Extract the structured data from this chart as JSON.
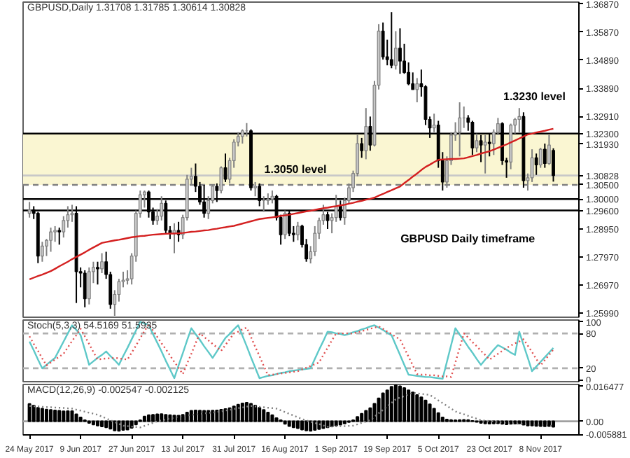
{
  "chart_data": [
    {
      "type": "candlestick",
      "title": "GBPUSD,Daily 1.31708 1.31785 1.30614 1.30828",
      "tick_labels": "y",
      "categories": [
        null,
        null,
        null,
        null,
        null,
        null,
        null,
        null,
        null,
        null,
        null,
        null,
        null,
        null,
        null,
        null,
        null,
        null,
        null,
        null,
        null,
        null,
        null,
        null,
        null,
        null,
        null,
        null,
        null,
        null,
        null,
        null,
        null,
        null,
        null,
        null,
        null,
        null,
        null,
        null,
        null,
        null,
        null,
        null,
        null,
        null,
        null,
        null,
        null,
        null,
        null,
        null,
        null,
        null,
        null,
        null,
        null,
        null,
        null,
        null,
        null,
        null,
        null,
        null,
        null,
        null,
        null,
        null,
        null,
        null,
        null,
        null,
        null,
        null,
        null,
        null,
        null,
        null,
        null,
        null,
        null,
        null,
        null,
        null,
        null,
        null,
        null,
        null,
        null,
        null,
        null,
        null,
        null,
        null,
        null,
        null,
        null,
        null,
        null,
        null,
        null,
        null,
        null,
        null,
        null,
        null,
        null,
        null,
        null,
        null,
        null,
        null,
        null,
        null,
        null,
        null,
        null,
        null,
        null,
        null,
        null,
        null,
        null,
        null
      ],
      "ohlc": [
        [
          1.295,
          1.299,
          1.2935,
          1.2962
        ],
        [
          1.2962,
          1.2975,
          1.293,
          1.295
        ],
        [
          1.295,
          1.2955,
          1.2775,
          1.28
        ],
        [
          1.28,
          1.285,
          1.278,
          1.2835
        ],
        [
          1.2835,
          1.286,
          1.28,
          1.2855
        ],
        [
          1.2855,
          1.29,
          1.2815,
          1.2885
        ],
        [
          1.2885,
          1.2905,
          1.285,
          1.289
        ],
        [
          1.289,
          1.29,
          1.284,
          1.2885
        ],
        [
          1.2885,
          1.294,
          1.2865,
          1.2925
        ],
        [
          1.2925,
          1.2975,
          1.29,
          1.2945
        ],
        [
          1.2945,
          1.298,
          1.292,
          1.295
        ],
        [
          1.295,
          1.2975,
          1.2635,
          1.2745
        ],
        [
          1.2745,
          1.276,
          1.269,
          1.274
        ],
        [
          1.274,
          1.275,
          1.262,
          1.265
        ],
        [
          1.265,
          1.276,
          1.263,
          1.2745
        ],
        [
          1.2745,
          1.278,
          1.2705,
          1.276
        ],
        [
          1.276,
          1.278,
          1.27,
          1.2755
        ],
        [
          1.2755,
          1.281,
          1.274,
          1.278
        ],
        [
          1.278,
          1.2815,
          1.272,
          1.2735
        ],
        [
          1.2735,
          1.2745,
          1.2615,
          1.263
        ],
        [
          1.263,
          1.268,
          1.259,
          1.2665
        ],
        [
          1.2665,
          1.272,
          1.264,
          1.271
        ],
        [
          1.271,
          1.2745,
          1.269,
          1.2715
        ],
        [
          1.2715,
          1.275,
          1.27,
          1.272
        ],
        [
          1.272,
          1.281,
          1.27,
          1.28
        ],
        [
          1.28,
          1.296,
          1.278,
          1.295
        ],
        [
          1.295,
          1.303,
          1.2935,
          1.3015
        ],
        [
          1.3015,
          1.303,
          1.297,
          1.3025
        ],
        [
          1.3025,
          1.303,
          1.2935,
          1.2955
        ],
        [
          1.2955,
          1.297,
          1.291,
          1.2925
        ],
        [
          1.2925,
          1.2965,
          1.291,
          1.294
        ],
        [
          1.294,
          1.301,
          1.2925,
          1.2985
        ],
        [
          1.2985,
          1.2995,
          1.288,
          1.289
        ],
        [
          1.289,
          1.2905,
          1.286,
          1.288
        ],
        [
          1.288,
          1.2915,
          1.281,
          1.289
        ],
        [
          1.289,
          1.292,
          1.285,
          1.2875
        ],
        [
          1.2875,
          1.2945,
          1.286,
          1.2935
        ],
        [
          1.2935,
          1.3085,
          1.2925,
          1.307
        ],
        [
          1.307,
          1.311,
          1.305,
          1.308
        ],
        [
          1.308,
          1.3125,
          1.3025,
          1.3045
        ],
        [
          1.3045,
          1.306,
          1.298,
          1.299
        ],
        [
          1.299,
          1.305,
          1.2935,
          1.295
        ],
        [
          1.295,
          1.301,
          1.293,
          1.2995
        ],
        [
          1.2995,
          1.305,
          1.2985,
          1.3045
        ],
        [
          1.3045,
          1.3055,
          1.299,
          1.303
        ],
        [
          1.303,
          1.3115,
          1.302,
          1.311
        ],
        [
          1.311,
          1.316,
          1.306,
          1.307
        ],
        [
          1.307,
          1.3145,
          1.3055,
          1.3135
        ],
        [
          1.3135,
          1.321,
          1.311,
          1.32
        ],
        [
          1.32,
          1.3235,
          1.3185,
          1.322
        ],
        [
          1.322,
          1.3245,
          1.3195,
          1.324
        ],
        [
          1.324,
          1.3267,
          1.322,
          1.324
        ],
        [
          1.324,
          1.3245,
          1.303,
          1.304
        ],
        [
          1.304,
          1.306,
          1.301,
          1.3045
        ],
        [
          1.3045,
          1.3055,
          1.2975,
          1.2995
        ],
        [
          1.2995,
          1.301,
          1.2955,
          1.2995
        ],
        [
          1.2995,
          1.302,
          1.298,
          1.3
        ],
        [
          1.3,
          1.303,
          1.2985,
          1.301
        ],
        [
          1.301,
          1.3015,
          1.2925,
          1.2935
        ],
        [
          1.2935,
          1.2945,
          1.284,
          1.2875
        ],
        [
          1.2875,
          1.296,
          1.286,
          1.295
        ],
        [
          1.295,
          1.296,
          1.287,
          1.288
        ],
        [
          1.288,
          1.2905,
          1.285,
          1.2875
        ],
        [
          1.2875,
          1.292,
          1.2855,
          1.2905
        ],
        [
          1.2905,
          1.291,
          1.283,
          1.284
        ],
        [
          1.284,
          1.286,
          1.278,
          1.279
        ],
        [
          1.279,
          1.2835,
          1.2774,
          1.2815
        ],
        [
          1.2815,
          1.2905,
          1.28,
          1.288
        ],
        [
          1.288,
          1.2935,
          1.286,
          1.2925
        ],
        [
          1.2925,
          1.298,
          1.291,
          1.2945
        ],
        [
          1.2945,
          1.2955,
          1.2895,
          1.2925
        ],
        [
          1.2925,
          1.295,
          1.288,
          1.2935
        ],
        [
          1.2935,
          1.3015,
          1.292,
          1.2975
        ],
        [
          1.2975,
          1.2995,
          1.2925,
          1.2935
        ],
        [
          1.2935,
          1.3005,
          1.291,
          1.2995
        ],
        [
          1.2995,
          1.3055,
          1.2985,
          1.304
        ],
        [
          1.304,
          1.31,
          1.3025,
          1.309
        ],
        [
          1.309,
          1.3225,
          1.308,
          1.3195
        ],
        [
          1.3195,
          1.3215,
          1.3145,
          1.317
        ],
        [
          1.317,
          1.332,
          1.314,
          1.3255
        ],
        [
          1.3255,
          1.329,
          1.317,
          1.319
        ],
        [
          1.319,
          1.3415,
          1.3185,
          1.34
        ],
        [
          1.34,
          1.3615,
          1.3385,
          1.359
        ],
        [
          1.359,
          1.362,
          1.349,
          1.35
        ],
        [
          1.35,
          1.356,
          1.347,
          1.349
        ],
        [
          1.349,
          1.3657,
          1.346,
          1.347
        ],
        [
          1.347,
          1.359,
          1.3455,
          1.353
        ],
        [
          1.353,
          1.36,
          1.344,
          1.3485
        ],
        [
          1.3485,
          1.3545,
          1.344,
          1.3445
        ],
        [
          1.3445,
          1.348,
          1.34,
          1.3405
        ],
        [
          1.3405,
          1.3445,
          1.3385,
          1.3385
        ],
        [
          1.3385,
          1.3425,
          1.334,
          1.3405
        ],
        [
          1.3405,
          1.3455,
          1.336,
          1.3395
        ],
        [
          1.3395,
          1.34,
          1.326,
          1.328
        ],
        [
          1.328,
          1.329,
          1.3215,
          1.325
        ],
        [
          1.325,
          1.33,
          1.3235,
          1.326
        ],
        [
          1.326,
          1.3275,
          1.311,
          1.3135
        ],
        [
          1.3135,
          1.3165,
          1.303,
          1.306
        ],
        [
          1.306,
          1.315,
          1.304,
          1.3135
        ],
        [
          1.3135,
          1.3235,
          1.312,
          1.3225
        ],
        [
          1.3225,
          1.327,
          1.3205,
          1.3235
        ],
        [
          1.3235,
          1.334,
          1.315,
          1.3285
        ],
        [
          1.3285,
          1.3325,
          1.325,
          1.3285
        ],
        [
          1.3285,
          1.3295,
          1.324,
          1.327
        ],
        [
          1.327,
          1.3275,
          1.3155,
          1.318
        ],
        [
          1.318,
          1.323,
          1.3165,
          1.3205
        ],
        [
          1.3205,
          1.3225,
          1.313,
          1.319
        ],
        [
          1.319,
          1.3225,
          1.309,
          1.32
        ],
        [
          1.32,
          1.323,
          1.315,
          1.3195
        ],
        [
          1.3195,
          1.3245,
          1.3155,
          1.3235
        ],
        [
          1.3235,
          1.3285,
          1.3225,
          1.3265
        ],
        [
          1.3265,
          1.327,
          1.312,
          1.3135
        ],
        [
          1.3135,
          1.3145,
          1.3075,
          1.313
        ],
        [
          1.313,
          1.3265,
          1.3105,
          1.326
        ],
        [
          1.326,
          1.3285,
          1.323,
          1.328
        ],
        [
          1.328,
          1.332,
          1.3235,
          1.329
        ],
        [
          1.329,
          1.3305,
          1.304,
          1.3065
        ],
        [
          1.3065,
          1.309,
          1.303,
          1.3075
        ],
        [
          1.3075,
          1.3175,
          1.306,
          1.3145
        ],
        [
          1.3145,
          1.316,
          1.3085,
          1.312
        ],
        [
          1.312,
          1.318,
          1.311,
          1.3175
        ],
        [
          1.3175,
          1.3195,
          1.311,
          1.3125
        ],
        [
          1.3125,
          1.3225,
          1.312,
          1.319
        ],
        [
          1.31708,
          1.31785,
          1.30614,
          1.30828
        ]
      ],
      "series": [
        {
          "type": "line",
          "color": "#d42020",
          "values": [
            1.2718,
            1.2724,
            1.273,
            1.2735,
            1.2741,
            1.2747,
            1.2755,
            1.2764,
            1.2772,
            1.278,
            1.2789,
            1.2797,
            1.2805,
            1.2813,
            1.2822,
            1.283,
            1.2838,
            1.2846,
            1.2849,
            1.2852,
            1.2855,
            1.2857,
            1.286,
            1.2863,
            1.2866,
            1.2868,
            1.287,
            1.2871,
            1.2873,
            1.2875,
            1.2876,
            1.2877,
            1.2878,
            1.2879,
            1.2879,
            1.288,
            1.2881,
            1.2883,
            1.2885,
            1.2886,
            1.2888,
            1.289,
            1.2891,
            1.2894,
            1.2896,
            1.2899,
            1.2901,
            1.2904,
            1.2906,
            1.291,
            1.2914,
            1.2918,
            1.2922,
            1.2926,
            1.293,
            1.2932,
            1.2934,
            1.2936,
            1.2938,
            1.2941,
            1.2943,
            1.2945,
            1.2948,
            1.2951,
            1.2954,
            1.2957,
            1.2959,
            1.2962,
            1.2965,
            1.2968,
            1.297,
            1.2973,
            1.2975,
            1.2978,
            1.298,
            1.2984,
            1.2987,
            1.2991,
            1.2994,
            1.2998,
            1.3001,
            1.3005,
            1.3012,
            1.3018,
            1.3025,
            1.3031,
            1.3038,
            1.3044,
            1.3056,
            1.3067,
            1.3079,
            1.309,
            1.3102,
            1.3113,
            1.3121,
            1.313,
            1.3138,
            1.3139,
            1.314,
            1.3141,
            1.3141,
            1.3142,
            1.3143,
            1.3147,
            1.3151,
            1.3155,
            1.316,
            1.3164,
            1.3168,
            1.3174,
            1.318,
            1.3186,
            1.3192,
            1.3199,
            1.3206,
            1.3213,
            1.322,
            1.3227,
            1.323,
            1.3234,
            1.3237,
            1.324,
            1.3244,
            1.3247
          ]
        }
      ],
      "ylim": [
        1.2585,
        1.3692
      ],
      "yticks": [
        {
          "value": 1.3687,
          "label": "1.36870"
        },
        {
          "value": 1.3587,
          "label": "1.35870"
        },
        {
          "value": 1.3489,
          "label": "1.34890"
        },
        {
          "value": 1.3389,
          "label": "1.33890"
        },
        {
          "value": 1.3291,
          "label": "1.32910"
        },
        {
          "value": 1.3193,
          "label": "1.31930"
        },
        {
          "value": 1.2895,
          "label": "1.28950"
        },
        {
          "value": 1.2797,
          "label": "1.27970"
        },
        {
          "value": 1.2697,
          "label": "1.26970"
        },
        {
          "value": 1.2599,
          "label": "1.25990"
        }
      ],
      "bands": [
        {
          "axis": "y",
          "from": 1.305,
          "to": 1.323,
          "color": "#faf6d2"
        }
      ],
      "ref_lines": [
        {
          "axis": "y",
          "value": 1.323,
          "label": "1.32300",
          "color": "#000000",
          "line_style": "solid"
        },
        {
          "axis": "y",
          "value": 1.30828,
          "label": "1.30828",
          "color": "#c8c8c8",
          "line_style": "solid"
        },
        {
          "axis": "y",
          "value": 1.305,
          "label": "1.30500",
          "color": "#808080",
          "line_style": "dashed"
        },
        {
          "axis": "y",
          "value": 1.3,
          "label": "1.30000",
          "color": "#000000",
          "line_style": "solid"
        },
        {
          "axis": "y",
          "value": 1.296,
          "label": "1.29600",
          "color": "#000000",
          "line_style": "solid"
        }
      ],
      "annotations": [
        "1.3050 level",
        "1.3230 level",
        "GBPUSD Daily timeframe"
      ]
    },
    {
      "type": "line",
      "title": "Stoch(5,3,3) 54.5169 51.5935",
      "tick_labels": "y",
      "ylim": [
        -3,
        103
      ],
      "categories": [
        null,
        null,
        null,
        null,
        null,
        null,
        null,
        null,
        null,
        null,
        null,
        null,
        null,
        null,
        null,
        null,
        null,
        null,
        null,
        null,
        null,
        null,
        null,
        null,
        null,
        null,
        null,
        null,
        null,
        null,
        null,
        null,
        null,
        null,
        null,
        null,
        null,
        null,
        null,
        null,
        null,
        null,
        null,
        null,
        null,
        null,
        null,
        null,
        null,
        null,
        null,
        null,
        null,
        null,
        null,
        null,
        null,
        null,
        null,
        null,
        null,
        null,
        null,
        null,
        null,
        null,
        null,
        null,
        null,
        null,
        null,
        null,
        null,
        null,
        null,
        null,
        null,
        null,
        null,
        null,
        null,
        null,
        null,
        null,
        null,
        null,
        null,
        null,
        null,
        null,
        null,
        null,
        null,
        null,
        null,
        null,
        null,
        null,
        null,
        null,
        null,
        null,
        null,
        null,
        null,
        null,
        null,
        null,
        null,
        null,
        null,
        null,
        null,
        null,
        null,
        null,
        null,
        null,
        null,
        null,
        null,
        null,
        null,
        null
      ],
      "yticks": [
        100,
        80,
        20,
        0
      ],
      "ref_lines": [
        {
          "axis": "y",
          "value": 80,
          "color": "#b0b0b0",
          "line_style": "dashed"
        },
        {
          "axis": "y",
          "value": 20,
          "color": "#b0b0b0",
          "line_style": "dashed"
        }
      ],
      "series": [
        {
          "color": "#5ec8c8",
          "line_style": "solid",
          "values": [
            66,
            51,
            35,
            20,
            26,
            32,
            38,
            52,
            66,
            80,
            94,
            86,
            77,
            52,
            26,
            32,
            38,
            43,
            49,
            41,
            34,
            26,
            41,
            55,
            70,
            85,
            100,
            97,
            94,
            79,
            64,
            49,
            33,
            18,
            3,
            25,
            46,
            68,
            89,
            79,
            69,
            58,
            48,
            38,
            49,
            61,
            72,
            79,
            87,
            94,
            76,
            58,
            39,
            21,
            3,
            5,
            7,
            8,
            10,
            12,
            13,
            15,
            16,
            17,
            18,
            19,
            20,
            36,
            52,
            67,
            83,
            82,
            80,
            79,
            77,
            79,
            82,
            84,
            87,
            89,
            92,
            94,
            90,
            86,
            81,
            77,
            60,
            43,
            26,
            9,
            8,
            7,
            6,
            5,
            5,
            4,
            3,
            2,
            31,
            60,
            89,
            78,
            68,
            57,
            47,
            36,
            26,
            35,
            43,
            52,
            60,
            56,
            52,
            47,
            43,
            83,
            60,
            38,
            15,
            23,
            31,
            39,
            47,
            55
          ]
        },
        {
          "color": "#e05050",
          "line_style": "dotted",
          "values": [
            75,
            62,
            50,
            37,
            25,
            30,
            35,
            40,
            45,
            56,
            67,
            77,
            88,
            75,
            62,
            48,
            35,
            36,
            37,
            37,
            38,
            37,
            36,
            35,
            47,
            59,
            72,
            84,
            96,
            85,
            74,
            63,
            53,
            42,
            31,
            21,
            10,
            28,
            45,
            63,
            80,
            74,
            68,
            62,
            56,
            50,
            60,
            70,
            80,
            83,
            87,
            90,
            74,
            57,
            41,
            24,
            8,
            9,
            10,
            11,
            12,
            13,
            14,
            15,
            18,
            21,
            24,
            27,
            30,
            43,
            55,
            68,
            80,
            80,
            80,
            80,
            80,
            82,
            84,
            86,
            88,
            90,
            92,
            88,
            83,
            79,
            74,
            70,
            55,
            40,
            25,
            10,
            9,
            9,
            8,
            8,
            7,
            6,
            6,
            5,
            30,
            55,
            80,
            73,
            65,
            58,
            50,
            43,
            35,
            40,
            45,
            50,
            55,
            59,
            63,
            66,
            70,
            59,
            48,
            36,
            25,
            34,
            43,
            52
          ]
        }
      ]
    },
    {
      "type": "bar",
      "title": "MACD(12,26,9) -0.002547 -0.002125",
      "color": "#000000",
      "ylim": [
        -0.0062,
        0.0168
      ],
      "yticks": [
        {
          "value": 0.016477,
          "label": "0.016477"
        },
        {
          "value": 0,
          "label": "0.00"
        },
        {
          "value": -0.005881,
          "label": "-0.005881"
        }
      ],
      "categories": [
        "24 May 2017",
        null,
        null,
        null,
        null,
        null,
        null,
        null,
        null,
        null,
        null,
        null,
        "9 Jun 2017",
        null,
        null,
        null,
        null,
        null,
        null,
        null,
        null,
        null,
        null,
        null,
        "27 Jun 2017",
        null,
        null,
        null,
        null,
        null,
        null,
        null,
        null,
        null,
        null,
        null,
        "13 Jul 2017",
        null,
        null,
        null,
        null,
        null,
        null,
        null,
        null,
        null,
        null,
        null,
        "31 Jul 2017",
        null,
        null,
        null,
        null,
        null,
        null,
        null,
        null,
        null,
        null,
        null,
        "16 Aug 2017",
        null,
        null,
        null,
        null,
        null,
        null,
        null,
        null,
        null,
        null,
        null,
        "1 Sep 2017",
        null,
        null,
        null,
        null,
        null,
        null,
        null,
        null,
        null,
        null,
        null,
        "19 Sep 2017",
        null,
        null,
        null,
        null,
        null,
        null,
        null,
        null,
        null,
        null,
        null,
        "5 Oct 2017",
        null,
        null,
        null,
        null,
        null,
        null,
        null,
        null,
        null,
        null,
        null,
        "23 Oct 2017",
        null,
        null,
        null,
        null,
        null,
        null,
        null,
        null,
        null,
        null,
        null,
        "8 Nov 2017",
        null,
        null,
        null
      ],
      "ref_lines": [
        {
          "axis": "y",
          "value": 0,
          "color": "#a0a0a0",
          "line_style": "solid"
        }
      ],
      "values": [
        0.0079,
        0.0072,
        0.0062,
        0.0058,
        0.0054,
        0.0052,
        0.005,
        0.0048,
        0.0046,
        0.0047,
        0.0047,
        0.0032,
        0.0018,
        0.0005,
        -0.0008,
        -0.0015,
        -0.002,
        -0.0024,
        -0.0028,
        -0.0034,
        -0.0042,
        -0.0044,
        -0.004,
        -0.0038,
        -0.003,
        -0.0015,
        0.0005,
        0.0022,
        0.0028,
        0.003,
        0.0032,
        0.0033,
        0.003,
        0.0028,
        0.0027,
        0.0026,
        0.003,
        0.004,
        0.0048,
        0.005,
        0.0049,
        0.0048,
        0.0048,
        0.0049,
        0.005,
        0.0053,
        0.0056,
        0.006,
        0.0068,
        0.0076,
        0.0082,
        0.0085,
        0.008,
        0.0072,
        0.0062,
        0.0052,
        0.004,
        0.0028,
        0.0015,
        0.0005,
        -0.0012,
        -0.0022,
        -0.0028,
        -0.0032,
        -0.0038,
        -0.0042,
        -0.0044,
        -0.004,
        -0.0036,
        -0.0032,
        -0.0028,
        -0.0024,
        -0.002,
        -0.0016,
        -0.001,
        -0.0004,
        0.0005,
        0.002,
        0.0035,
        0.0048,
        0.006,
        0.008,
        0.0105,
        0.0128,
        0.0142,
        0.0158,
        0.0164,
        0.016,
        0.0152,
        0.0142,
        0.0132,
        0.012,
        0.011,
        0.0095,
        0.0078,
        0.0058,
        0.0038,
        0.0018,
        0.0008,
        0.0006,
        0.0005,
        0.0006,
        0.0007,
        0.0006,
        0.0002,
        -0.0003,
        -0.0008,
        -0.001,
        -0.0011,
        -0.001,
        -0.0009,
        -0.0012,
        -0.0014,
        -0.0012,
        -0.0011,
        -0.001,
        -0.0016,
        -0.002,
        -0.002,
        -0.0021,
        -0.0022,
        -0.0023,
        -0.0022,
        -0.0025
      ],
      "series": [
        {
          "type": "line",
          "color": "#808080",
          "line_style": "dotted",
          "values": [
            0.007,
            0.0069,
            0.0068,
            0.0066,
            0.0065,
            0.0064,
            0.0063,
            0.0062,
            0.0061,
            0.0059,
            0.0058,
            0.0053,
            0.0049,
            0.0044,
            0.0039,
            0.0035,
            0.003,
            0.0022,
            0.0013,
            0.0005,
            -0.0003,
            -0.0012,
            -0.002,
            -0.0022,
            -0.0024,
            -0.0026,
            -0.0028,
            -0.0021,
            -0.0014,
            -0.0007,
            0.0,
            0.0004,
            0.0008,
            0.0013,
            0.0017,
            0.0021,
            0.0025,
            0.0027,
            0.0029,
            0.0031,
            0.0033,
            0.0036,
            0.0038,
            0.004,
            0.0042,
            0.0045,
            0.0049,
            0.0052,
            0.0056,
            0.006,
            0.0063,
            0.0067,
            0.007,
            0.0068,
            0.0066,
            0.0064,
            0.0062,
            0.006,
            0.0058,
            0.005,
            0.0042,
            0.0034,
            0.0026,
            0.0018,
            0.001,
            0.0004,
            -0.0002,
            -0.0008,
            -0.0013,
            -0.0019,
            -0.0025,
            -0.0024,
            -0.0023,
            -0.0022,
            -0.0022,
            -0.0021,
            -0.002,
            -0.0014,
            -0.0007,
            -0.0001,
            0.0005,
            0.0021,
            0.0037,
            0.0052,
            0.0068,
            0.0084,
            0.01,
            0.0108,
            0.0115,
            0.0123,
            0.013,
            0.0128,
            0.0125,
            0.0123,
            0.012,
            0.0108,
            0.0095,
            0.0083,
            0.007,
            0.0058,
            0.0045,
            0.0038,
            0.0032,
            0.0025,
            0.0018,
            0.0012,
            0.0005,
            0.0003,
            0.0001,
            -0.0001,
            -0.0004,
            -0.0006,
            -0.0008,
            -0.0009,
            -0.001,
            -0.0011,
            -0.0013,
            -0.0014,
            -0.0015,
            -0.0016,
            -0.0017,
            -0.0018,
            -0.002,
            -0.0021
          ]
        }
      ]
    }
  ]
}
